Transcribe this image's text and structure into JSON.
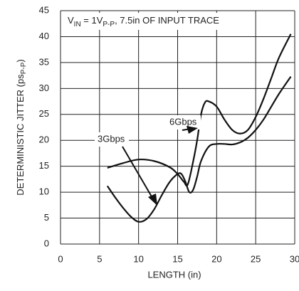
{
  "chart_data": {
    "type": "line",
    "annotation_parts": [
      "V",
      "IN",
      " = 1V",
      "P-P",
      ", 7.5in OF INPUT TRACE"
    ],
    "y_label_parts": [
      "DETERMINISTIC JITTER (ps",
      "P-P",
      ")"
    ],
    "x_label": "LENGTH (in)",
    "xlim": [
      0,
      30
    ],
    "xticks": [
      0,
      5,
      10,
      15,
      20,
      25,
      30
    ],
    "ylim": [
      0,
      45
    ],
    "yticks": [
      0,
      5,
      10,
      15,
      20,
      25,
      30,
      35,
      40,
      45
    ],
    "grid": true,
    "series": [
      {
        "name": "6Gbps",
        "color": "#111111",
        "x": [
          6,
          8,
          10,
          12,
          14,
          15,
          15.8,
          16.3,
          17,
          17.5,
          18,
          18.5,
          19,
          20,
          21,
          22,
          23,
          24,
          25,
          26,
          27,
          28,
          29.5
        ],
        "values": [
          14.7,
          15.6,
          16.3,
          16,
          14.8,
          13.5,
          12,
          11.5,
          16,
          20,
          25,
          27.3,
          27.5,
          26.5,
          24,
          22,
          21.3,
          22,
          24.5,
          28,
          32,
          36,
          40.5
        ]
      },
      {
        "name": "3Gbps",
        "color": "#111111",
        "x": [
          6,
          7,
          8,
          9,
          10,
          11,
          12,
          13,
          14,
          15,
          15.5,
          16,
          16.5,
          17,
          17.5,
          18,
          19,
          20,
          21,
          22,
          23,
          24,
          25,
          26,
          27,
          28,
          29.5
        ],
        "values": [
          11.2,
          9,
          7,
          5.3,
          4.3,
          4.8,
          6.7,
          9.5,
          12,
          13.5,
          13.5,
          12,
          10,
          10.5,
          13,
          16,
          18.8,
          19.3,
          19.3,
          19.2,
          19.6,
          20.5,
          22,
          24,
          26.5,
          29,
          32.3
        ]
      }
    ]
  }
}
